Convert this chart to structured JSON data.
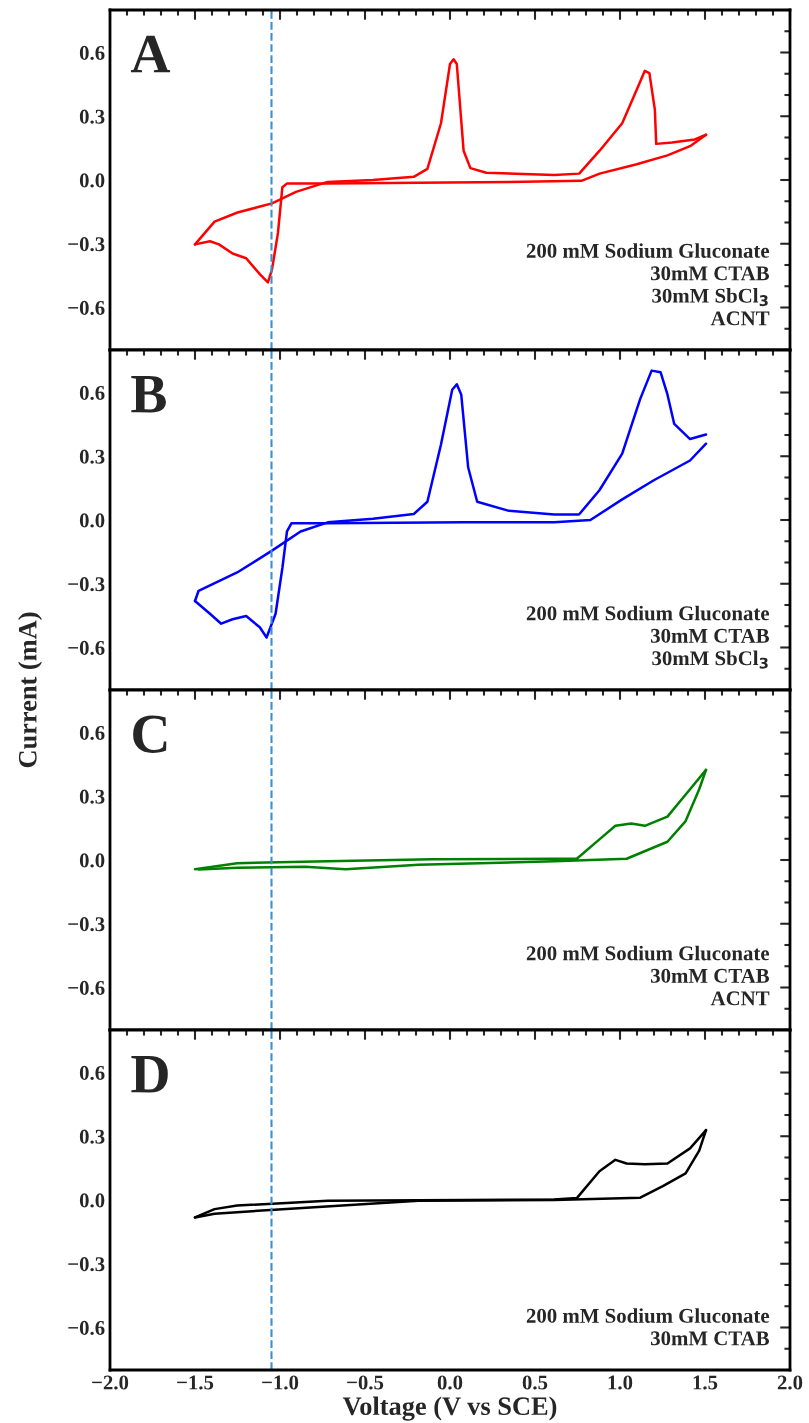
{
  "chart_data": [
    {
      "type": "line",
      "xlim": [
        -2.0,
        2.0
      ],
      "ylim": [
        -0.8,
        0.8
      ],
      "xticks": [
        -2.0,
        -1.5,
        -1.0,
        -0.5,
        0.0,
        0.5,
        1.0,
        1.5,
        2.0
      ],
      "yticks": [
        {
          "value": -0.6,
          "label": "−0.6"
        },
        {
          "value": -0.3,
          "label": "−0.3"
        },
        {
          "value": 0.0,
          "label": "0.0"
        },
        {
          "value": 0.3,
          "label": "0.3"
        },
        {
          "value": 0.6,
          "label": "0.6"
        }
      ],
      "tick_labels": "y",
      "grid": false,
      "legend": false,
      "ref_lines": [
        {
          "axis": "x",
          "value": -1.05,
          "color": "#3a8fcf",
          "line_style": "dashed"
        }
      ],
      "annotations": [
        "A",
        "200 mM Sodium Gluconate\n30mM CTAB\n30mM SbCl$_{3}$\nACNT"
      ],
      "series": [
        {
          "color": "#ff0000",
          "line_style": "solid",
          "marker": "none",
          "x": [
            -1.5,
            -1.385,
            -1.25,
            -1.047,
            -0.906,
            -0.72,
            -0.453,
            -0.213,
            -0.133,
            -0.053,
            0.0,
            0.021,
            0.04,
            0.08,
            0.12,
            0.213,
            0.613,
            0.76,
            0.88,
            1.013,
            1.106,
            1.146,
            1.173,
            1.205,
            1.213,
            1.306,
            1.44,
            1.506
          ],
          "values": [
            -0.303,
            -0.196,
            -0.153,
            -0.11,
            -0.056,
            -0.009,
            0.0,
            0.015,
            0.052,
            0.267,
            0.546,
            0.568,
            0.546,
            0.138,
            0.056,
            0.034,
            0.024,
            0.03,
            0.138,
            0.267,
            0.439,
            0.514,
            0.503,
            0.331,
            0.17,
            0.176,
            0.191,
            0.213
          ]
        },
        {
          "color": "#ff0000",
          "line_style": "solid",
          "marker": "none",
          "x": [
            1.506,
            1.412,
            1.279,
            1.093,
            0.88,
            0.773,
            0.347,
            -0.186,
            -0.72,
            -0.96,
            -0.986,
            -1.012,
            -1.047,
            -1.071,
            -1.119,
            -1.199,
            -1.279,
            -1.359,
            -1.412,
            -1.5
          ],
          "values": [
            0.213,
            0.159,
            0.116,
            0.073,
            0.03,
            -0.004,
            -0.009,
            -0.013,
            -0.017,
            -0.017,
            -0.034,
            -0.249,
            -0.421,
            -0.482,
            -0.443,
            -0.368,
            -0.346,
            -0.303,
            -0.288,
            -0.303
          ]
        }
      ]
    },
    {
      "type": "line",
      "xlim": [
        -2.0,
        2.0
      ],
      "ylim": [
        -0.8,
        0.8
      ],
      "xticks": [
        -2.0,
        -1.5,
        -1.0,
        -0.5,
        0.0,
        0.5,
        1.0,
        1.5,
        2.0
      ],
      "yticks": [
        {
          "value": -0.6,
          "label": "−0.6"
        },
        {
          "value": -0.3,
          "label": "−0.3"
        },
        {
          "value": 0.0,
          "label": "0.0"
        },
        {
          "value": 0.3,
          "label": "0.3"
        },
        {
          "value": 0.6,
          "label": "0.6"
        }
      ],
      "tick_labels": "y",
      "grid": false,
      "legend": false,
      "ylabel": "Current (mA)",
      "ref_lines": [
        {
          "axis": "x",
          "value": -1.05,
          "color": "#3a8fcf",
          "line_style": "dashed"
        }
      ],
      "annotations": [
        "B",
        "200 mM Sodium Gluconate\n30mM CTAB\n30mM SbCl$_{3}$"
      ],
      "series": [
        {
          "color": "#0000ff",
          "line_style": "solid",
          "marker": "none",
          "x": [
            -1.5,
            -1.479,
            -1.252,
            -1.047,
            -0.879,
            -0.719,
            -0.453,
            -0.213,
            -0.133,
            -0.053,
            0.013,
            0.04,
            0.066,
            0.107,
            0.16,
            0.347,
            0.613,
            0.759,
            0.879,
            1.013,
            1.119,
            1.186,
            1.239,
            1.279,
            1.319,
            1.412,
            1.506
          ],
          "values": [
            -0.381,
            -0.333,
            -0.247,
            -0.144,
            -0.054,
            -0.011,
            0.006,
            0.028,
            0.086,
            0.355,
            0.613,
            0.639,
            0.591,
            0.247,
            0.086,
            0.043,
            0.026,
            0.026,
            0.14,
            0.312,
            0.57,
            0.703,
            0.695,
            0.591,
            0.452,
            0.381,
            0.402
          ]
        },
        {
          "color": "#0000ff",
          "line_style": "solid",
          "marker": "none",
          "x": [
            1.506,
            1.412,
            1.199,
            1.013,
            0.826,
            0.613,
            0.08,
            -0.719,
            -0.932,
            -0.959,
            -0.986,
            -1.026,
            -1.079,
            -1.119,
            -1.199,
            -1.279,
            -1.346,
            -1.412,
            -1.5
          ],
          "values": [
            0.359,
            0.28,
            0.187,
            0.097,
            0.0,
            -0.011,
            -0.011,
            -0.015,
            -0.015,
            -0.054,
            -0.226,
            -0.441,
            -0.553,
            -0.505,
            -0.452,
            -0.467,
            -0.488,
            -0.441,
            -0.381
          ]
        }
      ]
    },
    {
      "type": "line",
      "xlim": [
        -2.0,
        2.0
      ],
      "ylim": [
        -0.8,
        0.8
      ],
      "xticks": [
        -2.0,
        -1.5,
        -1.0,
        -0.5,
        0.0,
        0.5,
        1.0,
        1.5,
        2.0
      ],
      "yticks": [
        {
          "value": -0.6,
          "label": "−0.6"
        },
        {
          "value": -0.3,
          "label": "−0.3"
        },
        {
          "value": 0.0,
          "label": "0.0"
        },
        {
          "value": 0.3,
          "label": "0.3"
        },
        {
          "value": 0.6,
          "label": "0.6"
        }
      ],
      "tick_labels": "y",
      "grid": false,
      "legend": false,
      "ref_lines": [
        {
          "axis": "x",
          "value": -1.05,
          "color": "#3a8fcf",
          "line_style": "dashed"
        }
      ],
      "annotations": [
        "C",
        "200 mM Sodium Gluconate\n30mM CTAB\nACNT"
      ],
      "series": [
        {
          "color": "#008000",
          "line_style": "solid",
          "marker": "none",
          "x": [
            -1.5,
            -1.252,
            -0.719,
            -0.106,
            0.613,
            0.746,
            0.879,
            0.973,
            1.066,
            1.146,
            1.279,
            1.412,
            1.506
          ],
          "values": [
            -0.043,
            -0.015,
            -0.006,
            0.004,
            0.006,
            0.006,
            0.097,
            0.161,
            0.172,
            0.161,
            0.204,
            0.333,
            0.424
          ]
        },
        {
          "color": "#008000",
          "line_style": "solid",
          "marker": "none",
          "x": [
            1.506,
            1.466,
            1.386,
            1.279,
            1.039,
            0.613,
            -0.186,
            -0.613,
            -0.852,
            -1.252,
            -1.479
          ],
          "values": [
            0.424,
            0.333,
            0.183,
            0.086,
            0.006,
            -0.006,
            -0.022,
            -0.043,
            -0.032,
            -0.037,
            -0.045
          ]
        }
      ]
    },
    {
      "type": "line",
      "xlim": [
        -2.0,
        2.0
      ],
      "ylim": [
        -0.8,
        0.8
      ],
      "xticks": [
        {
          "value": -2.0,
          "label": "−2.0"
        },
        {
          "value": -1.5,
          "label": "−1.5"
        },
        {
          "value": -1.0,
          "label": "−1.0"
        },
        {
          "value": -0.5,
          "label": "−0.5"
        },
        {
          "value": 0.0,
          "label": "0.0"
        },
        0.5,
        {
          "value": 1.0,
          "label": "1.0"
        },
        1.5,
        {
          "value": 2.0,
          "label": "2.0"
        }
      ],
      "yticks": [
        {
          "value": -0.6,
          "label": "−0.6"
        },
        {
          "value": -0.3,
          "label": "−0.3"
        },
        {
          "value": 0.0,
          "label": "0.0"
        },
        {
          "value": 0.3,
          "label": "0.3"
        },
        {
          "value": 0.6,
          "label": "0.6"
        }
      ],
      "grid": false,
      "legend": false,
      "xlabel": "Voltage (V vs SCE)",
      "ref_lines": [
        {
          "axis": "x",
          "value": -1.05,
          "color": "#3a8fcf",
          "line_style": "dashed"
        }
      ],
      "annotations": [
        "D",
        "200 mM Sodium Gluconate\n30mM CTAB"
      ],
      "series": [
        {
          "color": "#000000",
          "line_style": "solid",
          "marker": "none",
          "x": [
            -1.5,
            -1.385,
            -1.252,
            -0.719,
            0.613,
            0.746,
            0.879,
            0.973,
            1.039,
            1.146,
            1.279,
            1.412,
            1.506
          ],
          "values": [
            -0.082,
            -0.043,
            -0.026,
            -0.004,
            0.002,
            0.009,
            0.135,
            0.189,
            0.172,
            0.168,
            0.172,
            0.243,
            0.329
          ]
        },
        {
          "color": "#000000",
          "line_style": "solid",
          "marker": "none",
          "x": [
            1.506,
            1.466,
            1.386,
            1.252,
            1.119,
            0.613,
            -0.186,
            -0.986,
            -1.385,
            -1.5
          ],
          "values": [
            0.329,
            0.232,
            0.125,
            0.065,
            0.011,
            0.0,
            -0.004,
            -0.043,
            -0.065,
            -0.082
          ]
        }
      ]
    }
  ]
}
